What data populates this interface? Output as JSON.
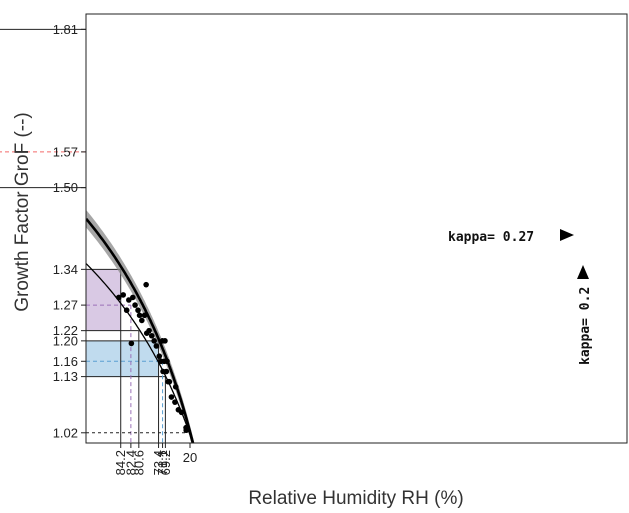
{
  "chart_data": {
    "type": "scatter",
    "title": "",
    "xlabel": "Relative Humidity RH (%)",
    "ylabel": "Growth Factor GroF (--)",
    "xscale": "reciprocal",
    "xlim": [
      0,
      95.5
    ],
    "ylim": [
      1.0,
      1.84
    ],
    "x_ticks": [
      20,
      69.2,
      71.1,
      73.4,
      80.6,
      82.4,
      84.2,
      92.6,
      93.5,
      95.1
    ],
    "x_tick_labels": [
      "20",
      "69.2",
      "71.1",
      "73.4",
      "80.6",
      "82.4",
      "84.2",
      "92.6",
      "93.5",
      "95.1"
    ],
    "y_ticks": [
      1.02,
      1.13,
      1.16,
      1.2,
      1.22,
      1.27,
      1.34,
      1.5,
      1.57,
      1.81
    ],
    "y_tick_labels": [
      "1.02",
      "1.13",
      "1.16",
      "1.20",
      "1.22",
      "1.27",
      "1.34",
      "1.50",
      "1.57",
      "1.81"
    ],
    "grid": false,
    "curves": [
      {
        "kappa": 0.27,
        "label": "kappa= 0.27",
        "color": "#000000",
        "band_color": "#888888"
      },
      {
        "kappa": 0.2,
        "label": "kappa= 0.2",
        "color": "#000000"
      }
    ],
    "bands": [
      {
        "color": "#5aa0d2",
        "x_range": [
          69.2,
          73.4
        ],
        "x_mid": 71.1,
        "y_range": [
          1.13,
          1.2
        ],
        "y_mid": 1.16
      },
      {
        "color": "#9b70b8",
        "x_range": [
          80.6,
          84.2
        ],
        "x_mid": 82.4,
        "y_range": [
          1.22,
          1.34
        ],
        "y_mid": 1.27
      },
      {
        "color": "#f46a6a",
        "x_range": [
          92.6,
          95.1
        ],
        "x_mid": 93.5,
        "y_range": [
          1.5,
          1.81
        ],
        "y_mid": 1.57
      }
    ],
    "ref_line": {
      "y": 1.02
    },
    "points": [
      {
        "x": 36.0,
        "y": 1.03
      },
      {
        "x": 36.5,
        "y": 1.025
      },
      {
        "x": 37.0,
        "y": 1.03
      },
      {
        "x": 49.0,
        "y": 1.06
      },
      {
        "x": 55.0,
        "y": 1.065
      },
      {
        "x": 59.0,
        "y": 1.11
      },
      {
        "x": 60.0,
        "y": 1.08
      },
      {
        "x": 64.0,
        "y": 1.09
      },
      {
        "x": 66.0,
        "y": 1.12
      },
      {
        "x": 67.0,
        "y": 1.12
      },
      {
        "x": 68.0,
        "y": 1.16
      },
      {
        "x": 68.5,
        "y": 1.14
      },
      {
        "x": 69.5,
        "y": 1.2
      },
      {
        "x": 70.0,
        "y": 1.16
      },
      {
        "x": 70.8,
        "y": 1.14
      },
      {
        "x": 71.2,
        "y": 1.2
      },
      {
        "x": 72.0,
        "y": 1.16
      },
      {
        "x": 73.0,
        "y": 1.17
      },
      {
        "x": 74.5,
        "y": 1.19
      },
      {
        "x": 75.5,
        "y": 1.2
      },
      {
        "x": 76.5,
        "y": 1.21
      },
      {
        "x": 77.5,
        "y": 1.22
      },
      {
        "x": 78.3,
        "y": 1.215
      },
      {
        "x": 78.5,
        "y": 1.31
      },
      {
        "x": 79.0,
        "y": 1.25
      },
      {
        "x": 79.8,
        "y": 1.24
      },
      {
        "x": 80.4,
        "y": 1.25
      },
      {
        "x": 80.8,
        "y": 1.26
      },
      {
        "x": 81.5,
        "y": 1.27
      },
      {
        "x": 82.0,
        "y": 1.285
      },
      {
        "x": 82.3,
        "y": 1.195
      },
      {
        "x": 82.8,
        "y": 1.28
      },
      {
        "x": 83.2,
        "y": 1.26
      },
      {
        "x": 83.8,
        "y": 1.29
      },
      {
        "x": 84.5,
        "y": 1.285
      }
    ]
  }
}
